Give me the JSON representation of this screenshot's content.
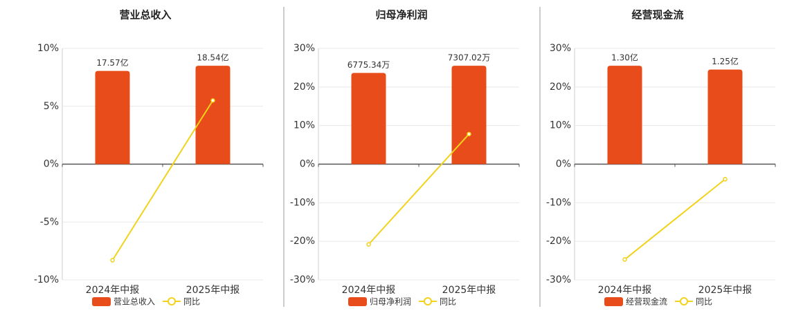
{
  "chart_data": [
    {
      "type": "bar",
      "title": "营业总收入",
      "categories": [
        "2024年中报",
        "2025年中报"
      ],
      "series": [
        {
          "name": "营业总收入",
          "type": "bar",
          "color": "#e84c1b",
          "values": [
            17.57,
            18.54
          ],
          "value_labels": [
            "17.57亿",
            "18.54亿"
          ]
        },
        {
          "name": "同比",
          "type": "line",
          "color": "#f2d21a",
          "values": [
            -8.3,
            5.5
          ]
        }
      ],
      "ylim": [
        -10,
        10
      ],
      "yticks": [
        {
          "value": -10,
          "label": "-10%"
        },
        {
          "value": -5,
          "label": "-5%"
        },
        {
          "value": 0,
          "label": "0%"
        },
        {
          "value": 5,
          "label": "5%"
        },
        {
          "value": 10,
          "label": "10%"
        }
      ],
      "grid": true
    },
    {
      "type": "bar",
      "title": "归母净利润",
      "categories": [
        "2024年中报",
        "2025年中报"
      ],
      "series": [
        {
          "name": "归母净利润",
          "type": "bar",
          "color": "#e84c1b",
          "values": [
            6775.34,
            7307.02
          ],
          "value_labels": [
            "6775.34万",
            "7307.02万"
          ]
        },
        {
          "name": "同比",
          "type": "line",
          "color": "#f2d21a",
          "values": [
            -20.8,
            7.8
          ]
        }
      ],
      "ylim": [
        -30,
        30
      ],
      "yticks": [
        {
          "value": -30,
          "label": "-30%"
        },
        {
          "value": -20,
          "label": "-20%"
        },
        {
          "value": -10,
          "label": "-10%"
        },
        {
          "value": 0,
          "label": "0%"
        },
        {
          "value": 10,
          "label": "10%"
        },
        {
          "value": 20,
          "label": "20%"
        },
        {
          "value": 30,
          "label": "30%"
        }
      ],
      "grid": true
    },
    {
      "type": "bar",
      "title": "经营现金流",
      "categories": [
        "2024年中报",
        "2025年中报"
      ],
      "series": [
        {
          "name": "经营现金流",
          "type": "bar",
          "color": "#e84c1b",
          "values": [
            1.3,
            1.25
          ],
          "value_labels": [
            "1.30亿",
            "1.25亿"
          ]
        },
        {
          "name": "同比",
          "type": "line",
          "color": "#f2d21a",
          "values": [
            -24.7,
            -3.9
          ]
        }
      ],
      "ylim": [
        -30,
        30
      ],
      "yticks": [
        {
          "value": -30,
          "label": "-30%"
        },
        {
          "value": -20,
          "label": "-20%"
        },
        {
          "value": -10,
          "label": "-10%"
        },
        {
          "value": 0,
          "label": "0%"
        },
        {
          "value": 10,
          "label": "10%"
        },
        {
          "value": 20,
          "label": "20%"
        },
        {
          "value": 30,
          "label": "30%"
        }
      ],
      "grid": true
    }
  ]
}
